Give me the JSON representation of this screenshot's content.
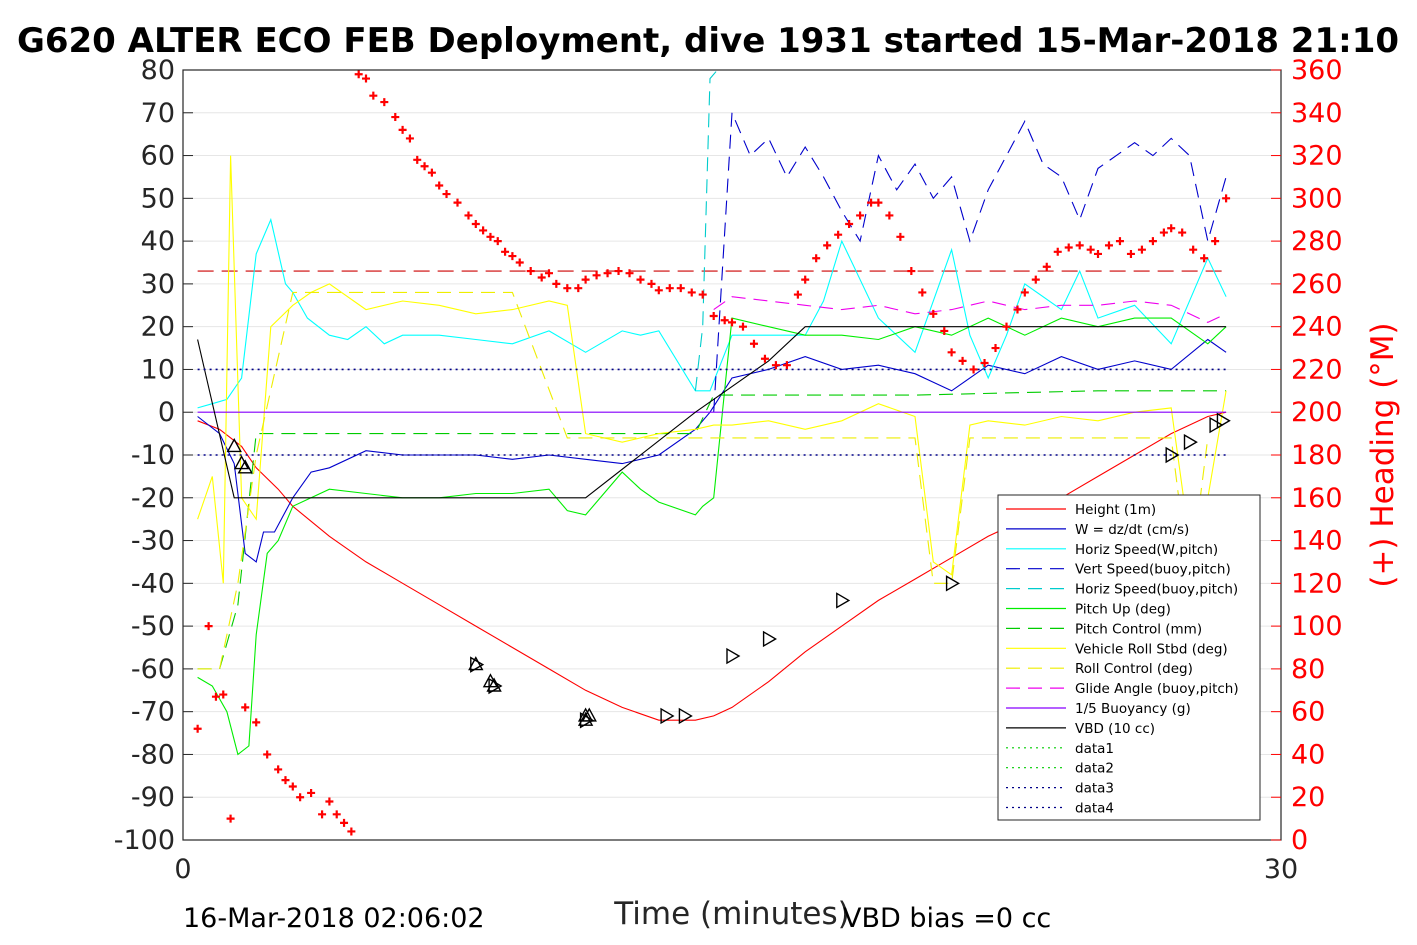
{
  "chart_data": {
    "type": "line",
    "title": "G620 ALTER ECO FEB Deployment, dive 1931 started 15-Mar-2018 21:10",
    "xlabel": "Time (minutes)",
    "ylabel": "",
    "y2label": "(+) Heading (°M)",
    "xlim": [
      0,
      30
    ],
    "ylim": [
      -100,
      80
    ],
    "y2lim": [
      0,
      360
    ],
    "xticks": [
      "0",
      "30"
    ],
    "yticks": [
      "80",
      "70",
      "60",
      "50",
      "40",
      "30",
      "20",
      "10",
      "0",
      "-10",
      "-20",
      "-30",
      "-40",
      "-50",
      "-60",
      "-70",
      "-80",
      "-90",
      "-100"
    ],
    "y2ticks": [
      "360",
      "340",
      "320",
      "300",
      "280",
      "260",
      "240",
      "220",
      "200",
      "180",
      "160",
      "140",
      "120",
      "100",
      "80",
      "60",
      "40",
      "20",
      "0"
    ],
    "grid": true,
    "legend_position": "bottom-right",
    "footer_left": "16-Mar-2018 02:06:02",
    "footer_right": "VBD bias =0 cc",
    "colors": {
      "height": "#ff0000",
      "w": "#0000cc",
      "horiz_w": "#00ffff",
      "vert_buoy": "#0000cc",
      "horiz_buoy": "#00cccc",
      "pitch_up": "#00ee00",
      "pitch_ctrl": "#00cc00",
      "roll": "#ffff00",
      "roll_ctrl": "#eeee00",
      "glide": "#ee00ee",
      "buoy": "#8800ff",
      "vbd": "#000000",
      "heading": "#ff0000",
      "red_dash": "#cc0000"
    },
    "series": [
      {
        "name": "Height (1m)",
        "style": "solid",
        "color": "#ff0000",
        "x": [
          0.4,
          1.0,
          1.6,
          2.0,
          2.6,
          3.0,
          4.0,
          5.0,
          6.0,
          7.0,
          8.0,
          9.0,
          10.0,
          11.0,
          12.0,
          13.0,
          14.0,
          14.5,
          15.0,
          16.0,
          17.0,
          18.0,
          19.0,
          20.0,
          21.0,
          22.0,
          23.0,
          24.0,
          25.0,
          26.0,
          27.0,
          28.0,
          28.5
        ],
        "y": [
          -2,
          -4,
          -8,
          -13,
          -18,
          -22,
          -29,
          -35,
          -40,
          -45,
          -50,
          -55,
          -60,
          -65,
          -69,
          -72,
          -72,
          -71,
          -69,
          -63,
          -56,
          -50,
          -44,
          -39,
          -34,
          -29,
          -25,
          -20,
          -15,
          -10,
          -5,
          -1,
          0
        ]
      },
      {
        "name": "W = dz/dt (cm/s)",
        "style": "solid",
        "color": "#0000cc",
        "x": [
          0.4,
          1.0,
          1.4,
          1.7,
          2.0,
          2.2,
          2.5,
          3.0,
          3.5,
          4.0,
          5.0,
          6.0,
          7.0,
          8.0,
          9.0,
          10.0,
          11.0,
          12.0,
          13.0,
          14.0,
          14.4,
          15.0,
          16.0,
          17.0,
          18.0,
          19.0,
          20.0,
          21.0,
          22.0,
          23.0,
          24.0,
          25.0,
          26.0,
          27.0,
          28.0,
          28.5
        ],
        "y": [
          -1,
          -5,
          -12,
          -33,
          -35,
          -28,
          -28,
          -20,
          -14,
          -13,
          -9,
          -10,
          -10,
          -10,
          -11,
          -10,
          -11,
          -12,
          -10,
          -4,
          0,
          8,
          10,
          13,
          10,
          11,
          9,
          5,
          11,
          9,
          13,
          10,
          12,
          10,
          17,
          14
        ]
      },
      {
        "name": "Horiz Speed(W,pitch)",
        "style": "solid",
        "color": "#00ffff",
        "x": [
          0.4,
          0.8,
          1.2,
          1.6,
          2.0,
          2.4,
          2.8,
          3.0,
          3.4,
          4.0,
          4.5,
          5.0,
          5.5,
          6.0,
          7.0,
          8.0,
          9.0,
          10.0,
          11.0,
          12.0,
          12.5,
          13.0,
          14.0,
          14.4,
          15.0,
          16.0,
          17.0,
          17.5,
          18.0,
          19.0,
          20.0,
          21.0,
          21.5,
          22.0,
          22.5,
          23.0,
          24.0,
          24.5,
          25.0,
          26.0,
          27.0,
          28.0,
          28.5
        ],
        "y": [
          1,
          2,
          3,
          8,
          37,
          45,
          30,
          28,
          22,
          18,
          17,
          20,
          16,
          18,
          18,
          17,
          16,
          19,
          14,
          19,
          18,
          19,
          5,
          5,
          18,
          18,
          18,
          26,
          40,
          22,
          14,
          38,
          18,
          8,
          18,
          30,
          24,
          33,
          22,
          25,
          16,
          36,
          27
        ]
      },
      {
        "name": "Vert Speed(buoy,pitch)",
        "style": "dash",
        "color": "#0000cc",
        "x": [
          14.5,
          15.0,
          15.5,
          16.0,
          16.5,
          17.0,
          17.5,
          18.0,
          18.5,
          19.0,
          19.5,
          20.0,
          20.5,
          21.0,
          21.5,
          22.0,
          22.5,
          23.0,
          23.5,
          24.0,
          24.5,
          25.0,
          25.5,
          26.0,
          26.5,
          27.0,
          27.5,
          28.0,
          28.5
        ],
        "y": [
          0,
          70,
          60,
          64,
          55,
          62,
          55,
          47,
          40,
          60,
          52,
          58,
          50,
          55,
          40,
          52,
          60,
          68,
          58,
          55,
          45,
          57,
          60,
          63,
          60,
          64,
          60,
          40,
          55
        ]
      },
      {
        "name": "Horiz Speed(buoy,pitch)",
        "style": "dash",
        "color": "#00cccc",
        "x": [
          14.0,
          14.2,
          14.4,
          14.6
        ],
        "y": [
          5,
          20,
          78,
          80
        ]
      },
      {
        "name": "Pitch Up (deg)",
        "style": "solid",
        "color": "#00ee00",
        "x": [
          0.4,
          0.8,
          1.2,
          1.5,
          1.8,
          2.0,
          2.3,
          2.6,
          3.0,
          3.5,
          4.0,
          5.0,
          6.0,
          7.0,
          8.0,
          9.0,
          10.0,
          10.5,
          11.0,
          12.0,
          12.5,
          13.0,
          14.0,
          14.2,
          14.5,
          15.0,
          16.0,
          17.0,
          18.0,
          19.0,
          20.0,
          21.0,
          22.0,
          23.0,
          24.0,
          25.0,
          26.0,
          27.0,
          28.0,
          28.5
        ],
        "y": [
          -62,
          -64,
          -70,
          -80,
          -78,
          -52,
          -33,
          -30,
          -22,
          -20,
          -18,
          -19,
          -20,
          -20,
          -19,
          -19,
          -18,
          -23,
          -24,
          -14,
          -18,
          -21,
          -24,
          -22,
          -20,
          22,
          20,
          18,
          18,
          17,
          20,
          18,
          22,
          18,
          22,
          20,
          22,
          22,
          16,
          20
        ]
      },
      {
        "name": "Pitch Control (mm)",
        "style": "dash",
        "color": "#00cc00",
        "x": [
          0.4,
          1.0,
          1.5,
          2.0,
          4.0,
          8.0,
          10.0,
          12.0,
          14.0,
          14.5,
          15.0,
          20.0,
          25.0,
          28.5
        ],
        "y": [
          -60,
          -60,
          -45,
          -5,
          -5,
          -5,
          -5,
          -5,
          -5,
          4,
          4,
          4,
          5,
          5
        ]
      },
      {
        "name": "Vehicle Roll Stbd (deg)",
        "style": "solid",
        "color": "#ffff00",
        "x": [
          0.4,
          0.8,
          1.1,
          1.3,
          1.6,
          2.0,
          2.4,
          3.0,
          3.5,
          4.0,
          5.0,
          6.0,
          7.0,
          8.0,
          9.0,
          10.0,
          10.5,
          11.0,
          12.0,
          13.0,
          14.0,
          14.5,
          15.0,
          16.0,
          17.0,
          18.0,
          19.0,
          20.0,
          20.5,
          21.0,
          21.5,
          22.0,
          23.0,
          24.0,
          25.0,
          26.0,
          27.0,
          27.5,
          28.0,
          28.5
        ],
        "y": [
          -25,
          -15,
          -40,
          60,
          -20,
          -25,
          20,
          25,
          28,
          30,
          24,
          26,
          25,
          23,
          24,
          26,
          25,
          -5,
          -7,
          -5,
          -4,
          -3,
          -3,
          -2,
          -4,
          -2,
          2,
          -1,
          -35,
          -38,
          -3,
          -2,
          -3,
          -1,
          -2,
          0,
          1,
          -30,
          -20,
          5
        ]
      },
      {
        "name": "Roll Control (deg)",
        "style": "dash",
        "color": "#eeee00",
        "x": [
          0.4,
          1.0,
          1.5,
          2.0,
          3.0,
          6.0,
          9.0,
          10.5,
          11.0,
          14.0,
          14.5,
          20.0,
          20.5,
          21.0,
          21.5,
          26.0,
          27.0,
          27.5,
          28.0
        ],
        "y": [
          -60,
          -60,
          -40,
          -10,
          28,
          28,
          28,
          -6,
          -6,
          -6,
          -6,
          -6,
          -40,
          -40,
          -6,
          -6,
          -6,
          -40,
          -6
        ]
      },
      {
        "name": "Glide Angle (buoy,pitch)",
        "style": "dash",
        "color": "#ee00ee",
        "x": [
          14.5,
          15.0,
          16.0,
          17.0,
          18.0,
          19.0,
          20.0,
          21.0,
          22.0,
          23.0,
          24.0,
          25.0,
          26.0,
          27.0,
          28.0,
          28.5
        ],
        "y": [
          24,
          27,
          26,
          25,
          24,
          25,
          23,
          24,
          26,
          24,
          25,
          25,
          26,
          25,
          21,
          23
        ]
      },
      {
        "name": "1/5 Buoyancy (g)",
        "style": "solid",
        "color": "#8800ff",
        "x": [
          0.4,
          28.5
        ],
        "y": [
          0,
          0
        ]
      },
      {
        "name": "VBD (10 cc)",
        "style": "solid",
        "color": "#000000",
        "x": [
          0.4,
          1.4,
          2.0,
          8.0,
          11.0,
          14.0,
          16.0,
          17.0,
          20.0,
          25.0,
          28.5
        ],
        "y": [
          17,
          -20,
          -20,
          -20,
          -20,
          0,
          12,
          20,
          20,
          20,
          20
        ]
      },
      {
        "name": "data1",
        "style": "dot",
        "color": "#00cc00",
        "x": [],
        "y": []
      },
      {
        "name": "data2",
        "style": "dot",
        "color": "#00cc00",
        "x": [],
        "y": []
      },
      {
        "name": "data3",
        "style": "dot",
        "color": "#000088",
        "x": [
          0.4,
          28.5
        ],
        "y": [
          -10,
          -10
        ]
      },
      {
        "name": "data4",
        "style": "dot",
        "color": "#000088",
        "x": [
          0.4,
          28.5
        ],
        "y": [
          10,
          10
        ]
      }
    ],
    "red_dash_line": {
      "y": 33
    },
    "heading_points": {
      "x": [
        0.4,
        0.7,
        0.9,
        1.1,
        1.3,
        1.7,
        2.0,
        2.3,
        2.6,
        2.8,
        3.0,
        3.2,
        3.5,
        3.8,
        4.0,
        4.2,
        4.4,
        4.6,
        4.8,
        5.0,
        5.2,
        5.5,
        5.8,
        6.0,
        6.2,
        6.4,
        6.6,
        6.8,
        7.0,
        7.2,
        7.5,
        7.8,
        8.0,
        8.2,
        8.4,
        8.6,
        8.8,
        9.0,
        9.2,
        9.5,
        9.8,
        10.0,
        10.2,
        10.5,
        10.8,
        11.0,
        11.3,
        11.6,
        11.9,
        12.2,
        12.5,
        12.8,
        13.0,
        13.3,
        13.6,
        13.9,
        14.2,
        14.5,
        14.8,
        15.0,
        15.3,
        15.6,
        15.9,
        16.2,
        16.5,
        16.8,
        17.0,
        17.3,
        17.6,
        17.9,
        18.2,
        18.5,
        18.8,
        19.0,
        19.3,
        19.6,
        19.9,
        20.2,
        20.5,
        20.8,
        21.0,
        21.3,
        21.6,
        21.9,
        22.2,
        22.5,
        22.8,
        23.0,
        23.3,
        23.6,
        23.9,
        24.2,
        24.5,
        24.8,
        25.0,
        25.3,
        25.6,
        25.9,
        26.2,
        26.5,
        26.8,
        27.0,
        27.3,
        27.6,
        27.9,
        28.2,
        28.5
      ],
      "y": [
        52,
        100,
        67,
        68,
        10,
        62,
        55,
        40,
        33,
        28,
        25,
        20,
        22,
        12,
        18,
        12,
        8,
        4,
        358,
        356,
        348,
        345,
        338,
        332,
        328,
        318,
        315,
        312,
        306,
        302,
        298,
        292,
        288,
        285,
        282,
        280,
        275,
        273,
        270,
        266,
        263,
        265,
        260,
        258,
        258,
        262,
        264,
        265,
        266,
        265,
        262,
        260,
        257,
        258,
        258,
        256,
        255,
        245,
        243,
        242,
        240,
        232,
        225,
        222,
        222,
        255,
        262,
        272,
        278,
        283,
        288,
        292,
        298,
        298,
        292,
        282,
        266,
        256,
        246,
        238,
        228,
        224,
        220,
        223,
        230,
        240,
        248,
        256,
        262,
        268,
        275,
        277,
        278,
        276,
        274,
        278,
        280,
        274,
        276,
        280,
        284,
        286,
        284,
        276,
        272,
        280,
        300
      ]
    },
    "markers_up": {
      "x": [
        1.4,
        1.7,
        1.6,
        8.0,
        8.4,
        8.5,
        11.0,
        11.0,
        11.1
      ],
      "y": [
        -8,
        -13,
        -12,
        -59,
        -63,
        -64,
        -71,
        -72,
        -71
      ]
    },
    "markers_right": {
      "x": [
        8.0,
        8.5,
        11.0,
        13.2,
        13.7,
        15.0,
        16.0,
        18.0,
        21.0,
        22.5,
        23.0,
        27.0,
        27.5,
        28.2,
        28.4
      ],
      "y": [
        -59,
        -64,
        -72,
        -71,
        -71,
        -57,
        -53,
        -44,
        -40,
        -34,
        -28,
        -10,
        -7,
        -3,
        -2
      ]
    }
  }
}
